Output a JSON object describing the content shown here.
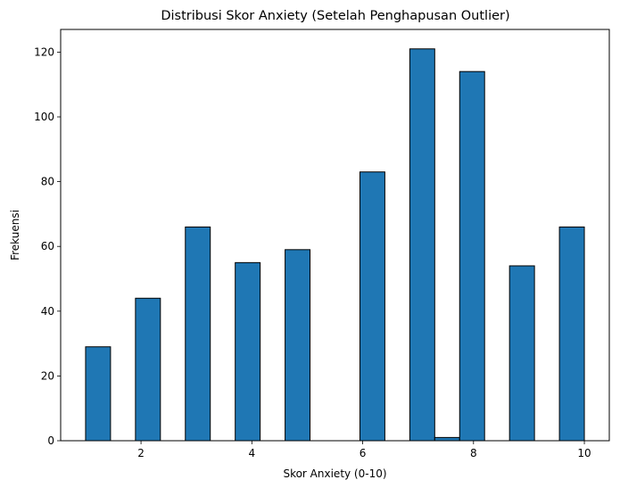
{
  "chart_data": {
    "type": "bar",
    "title": "Distribusi Skor Anxiety (Setelah Penghapusan Outlier)",
    "xlabel": "Skor Anxiety (0-10)",
    "ylabel": "Frekuensi",
    "xlim": [
      0.55,
      10.45
    ],
    "ylim": [
      0,
      127
    ],
    "xticks": [
      2,
      4,
      6,
      8,
      10
    ],
    "yticks": [
      0,
      20,
      40,
      60,
      80,
      100,
      120
    ],
    "grid": false,
    "bar_color": "#1f77b4",
    "edge_color": "#000000",
    "bins": [
      {
        "start": 1.0,
        "end": 1.45,
        "value": 29
      },
      {
        "start": 1.45,
        "end": 1.9,
        "value": 0
      },
      {
        "start": 1.9,
        "end": 2.35,
        "value": 44
      },
      {
        "start": 2.35,
        "end": 2.8,
        "value": 0
      },
      {
        "start": 2.8,
        "end": 3.25,
        "value": 66
      },
      {
        "start": 3.25,
        "end": 3.7,
        "value": 0
      },
      {
        "start": 3.7,
        "end": 4.15,
        "value": 55
      },
      {
        "start": 4.15,
        "end": 4.6,
        "value": 0
      },
      {
        "start": 4.6,
        "end": 5.05,
        "value": 59
      },
      {
        "start": 5.05,
        "end": 5.5,
        "value": 0
      },
      {
        "start": 5.5,
        "end": 5.95,
        "value": 0
      },
      {
        "start": 5.95,
        "end": 6.4,
        "value": 83
      },
      {
        "start": 6.4,
        "end": 6.85,
        "value": 0
      },
      {
        "start": 6.85,
        "end": 7.3,
        "value": 121
      },
      {
        "start": 7.3,
        "end": 7.75,
        "value": 1
      },
      {
        "start": 7.75,
        "end": 8.2,
        "value": 114
      },
      {
        "start": 8.2,
        "end": 8.65,
        "value": 0
      },
      {
        "start": 8.65,
        "end": 9.1,
        "value": 54
      },
      {
        "start": 9.1,
        "end": 9.55,
        "value": 0
      },
      {
        "start": 9.55,
        "end": 10.0,
        "value": 66
      }
    ]
  }
}
